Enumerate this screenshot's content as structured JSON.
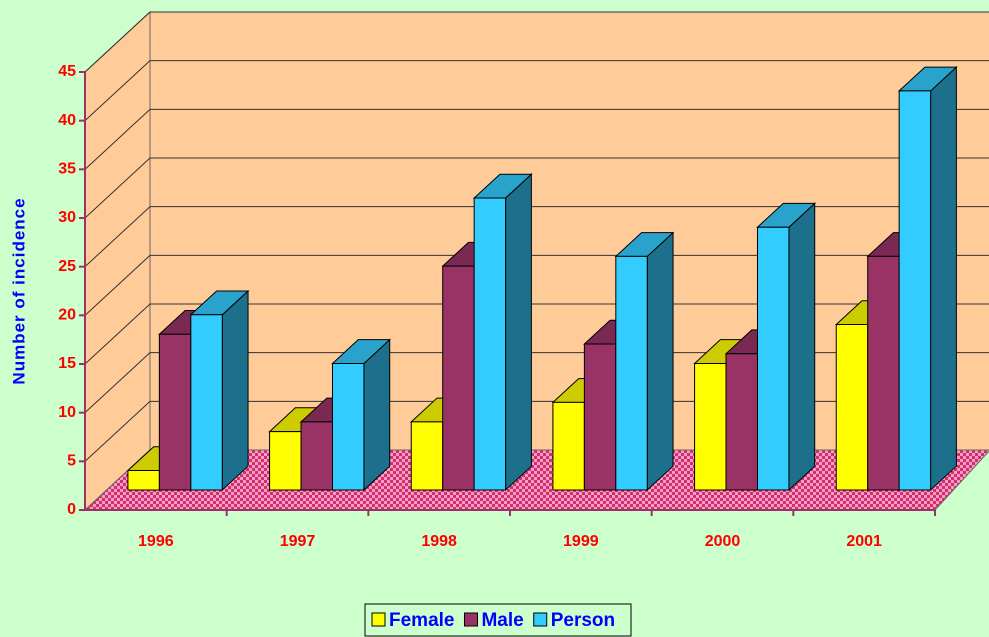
{
  "chart_data": {
    "type": "bar3d",
    "y_label": "Number of incidence",
    "categories": [
      "1996",
      "1997",
      "1998",
      "1999",
      "2000",
      "2001"
    ],
    "series": [
      {
        "name": "Female",
        "color": "#ffff00",
        "values": [
          2,
          6,
          7,
          9,
          13,
          17
        ]
      },
      {
        "name": "Male",
        "color": "#993366",
        "values": [
          16,
          7,
          23,
          15,
          14,
          24
        ]
      },
      {
        "name": "Person",
        "color": "#33ccff",
        "values": [
          18,
          13,
          30,
          24,
          27,
          41
        ]
      }
    ],
    "ylim": [
      0,
      45
    ],
    "yticks": [
      0,
      5,
      10,
      15,
      20,
      25,
      30,
      35,
      40,
      45
    ],
    "grid": true,
    "legend": "bottom"
  }
}
